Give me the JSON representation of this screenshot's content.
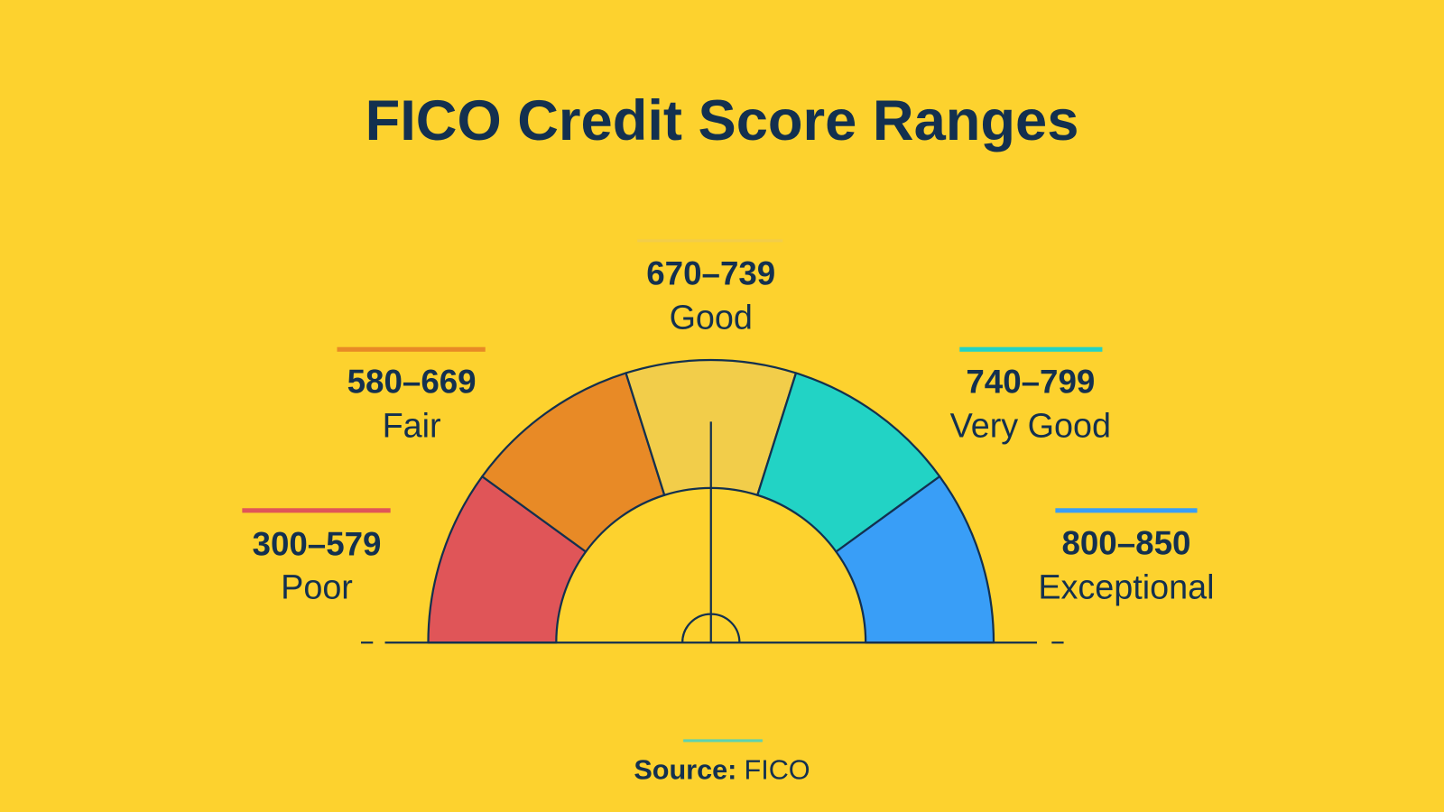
{
  "title": "FICO Credit Score Ranges",
  "ranges": [
    {
      "range": "300–579",
      "label": "Poor",
      "color": "#E05558"
    },
    {
      "range": "580–669",
      "label": "Fair",
      "color": "#E88A26"
    },
    {
      "range": "670–739",
      "label": "Good",
      "color": "#F2CD4A"
    },
    {
      "range": "740–799",
      "label": "Very Good",
      "color": "#22D3C5"
    },
    {
      "range": "800–850",
      "label": "Exceptional",
      "color": "#399EF7"
    }
  ],
  "source": {
    "label": "Source:",
    "value": "FICO"
  },
  "colors": {
    "background": "#FDD22E",
    "text": "#13304F"
  }
}
